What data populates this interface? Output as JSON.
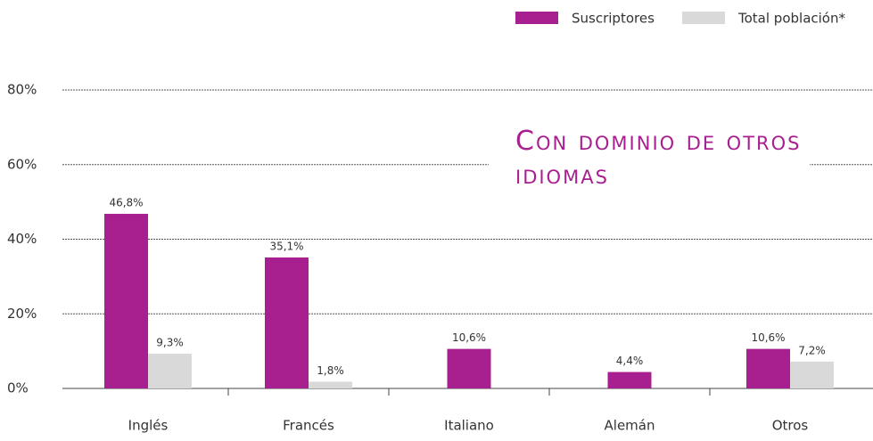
{
  "chart_data": {
    "type": "bar",
    "title": "Con dominio de otros idiomas",
    "categories": [
      "Inglés",
      "Francés",
      "Italiano",
      "Alemán",
      "Otros"
    ],
    "series": [
      {
        "name": "Suscriptores",
        "color": "#a81f8f",
        "values": [
          46.8,
          35.1,
          10.6,
          4.4,
          10.6
        ],
        "value_labels": [
          "46,8%",
          "35,1%",
          "10,6%",
          "4,4%",
          "10,6%"
        ]
      },
      {
        "name": "Total población*",
        "color": "#d9d9d9",
        "values": [
          9.3,
          1.8,
          null,
          null,
          7.2
        ],
        "value_labels": [
          "9,3%",
          "1,8%",
          null,
          null,
          "7,2%"
        ]
      }
    ],
    "ylim": [
      0,
      80
    ],
    "yticks": [
      {
        "value": 0,
        "label": "0%"
      },
      {
        "value": 20,
        "label": "20%"
      },
      {
        "value": 40,
        "label": "40%"
      },
      {
        "value": 60,
        "label": "60%"
      },
      {
        "value": 80,
        "label": "80%"
      }
    ],
    "grid": true,
    "legend": "top-right"
  }
}
